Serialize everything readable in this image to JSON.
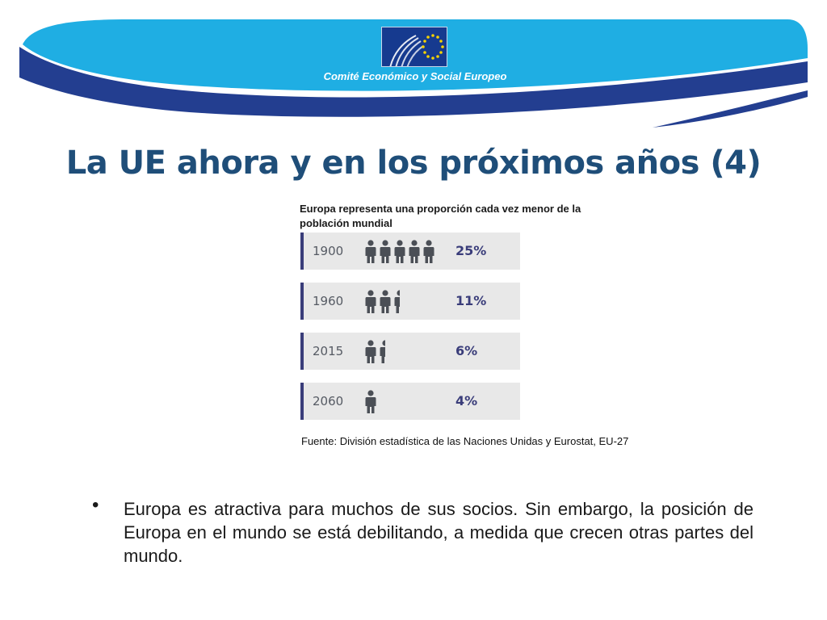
{
  "header": {
    "org_name": "Comité Económico y Social Europeo",
    "logo_icon": "eesc-eu-stars-logo",
    "colors": {
      "primary_blue": "#1f4e79",
      "cyan": "#1faee3",
      "navy": "#233e90"
    }
  },
  "slide": {
    "title": "La UE ahora y en los próximos años (4)"
  },
  "infographic": {
    "caption": "Europa representa una proporción cada vez menor de la población mundial",
    "person_icon": "person-icon",
    "rows": [
      {
        "year": "1900",
        "people": 5,
        "percent": "25%"
      },
      {
        "year": "1960",
        "people": 2.5,
        "percent": "11%"
      },
      {
        "year": "2015",
        "people": 1.5,
        "percent": "6%"
      },
      {
        "year": "2060",
        "people": 1,
        "percent": "4%"
      }
    ],
    "source": "Fuente: División estadística de las Naciones Unidas y Eurostat, EU-27"
  },
  "body": {
    "bullet_symbol": "•",
    "bullet_text": "Europa es atractiva para muchos de sus socios. Sin embargo, la posición de Europa en el mundo se está debilitando, a medida que crecen otras partes del mundo."
  }
}
